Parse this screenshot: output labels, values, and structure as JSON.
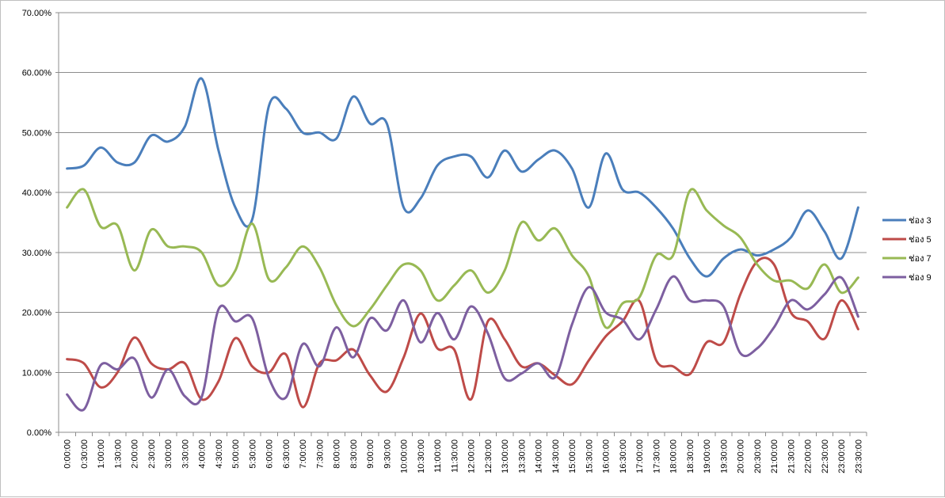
{
  "chart_data": {
    "type": "line",
    "title": "",
    "xlabel": "",
    "ylabel": "",
    "ylim": [
      0,
      70
    ],
    "yticks": [
      "0.00%",
      "10.00%",
      "20.00%",
      "30.00%",
      "40.00%",
      "50.00%",
      "60.00%",
      "70.00%"
    ],
    "grid": true,
    "legend_position": "right",
    "categories": [
      "0:00:00",
      "0:30:00",
      "1:00:00",
      "1:30:00",
      "2:00:00",
      "2:30:00",
      "3:00:00",
      "3:30:00",
      "4:00:00",
      "4:30:00",
      "5:00:00",
      "5:30:00",
      "6:00:00",
      "6:30:00",
      "7:00:00",
      "7:30:00",
      "8:00:00",
      "8:30:00",
      "9:00:00",
      "9:30:00",
      "10:00:00",
      "10:30:00",
      "11:00:00",
      "11:30:00",
      "12:00:00",
      "12:30:00",
      "13:00:00",
      "13:30:00",
      "14:00:00",
      "14:30:00",
      "15:00:00",
      "15:30:00",
      "16:00:00",
      "16:30:00",
      "17:00:00",
      "17:30:00",
      "18:00:00",
      "18:30:00",
      "19:00:00",
      "19:30:00",
      "20:00:00",
      "20:30:00",
      "21:00:00",
      "21:30:00",
      "22:00:00",
      "22:30:00",
      "23:00:00",
      "23:30:00"
    ],
    "series": [
      {
        "name": "ช่อง 3",
        "color": "#4a7ebb",
        "values": [
          44.0,
          44.5,
          47.5,
          45.0,
          45.0,
          49.5,
          48.5,
          51.0,
          59.0,
          47.0,
          37.5,
          35.5,
          54.5,
          54.0,
          50.0,
          50.0,
          49.0,
          56.0,
          51.5,
          51.5,
          37.5,
          39.0,
          44.5,
          46.0,
          46.0,
          42.5,
          47.0,
          43.5,
          45.5,
          47.0,
          44.0,
          37.5,
          46.5,
          40.5,
          40.0,
          37.5,
          34.0,
          29.0,
          26.0,
          29.0,
          30.5,
          29.5,
          30.5,
          32.5,
          37.0,
          33.5,
          29.0,
          37.5
        ]
      },
      {
        "name": "ช่อง 5",
        "color": "#be4b48",
        "values": [
          12.2,
          11.5,
          7.5,
          10.0,
          15.8,
          11.5,
          10.5,
          11.5,
          5.5,
          8.5,
          15.7,
          11.0,
          10.0,
          13.0,
          4.2,
          11.5,
          12.0,
          13.8,
          9.5,
          6.8,
          12.5,
          19.8,
          14.0,
          13.8,
          5.5,
          18.5,
          15.5,
          11.0,
          11.5,
          9.5,
          8.0,
          12.0,
          16.0,
          18.5,
          21.9,
          12.0,
          11.0,
          9.7,
          15.0,
          15.0,
          23.0,
          28.5,
          28.0,
          20.0,
          18.5,
          15.6,
          22.0,
          17.2
        ]
      },
      {
        "name": "ช่อง 7",
        "color": "#98b954",
        "values": [
          37.5,
          40.5,
          34.3,
          34.5,
          27.0,
          33.8,
          31.0,
          31.0,
          30.0,
          24.5,
          27.0,
          34.8,
          25.5,
          27.5,
          31.0,
          27.5,
          21.2,
          17.7,
          20.5,
          24.5,
          28.0,
          27.0,
          22.0,
          24.5,
          27.0,
          23.3,
          27.0,
          35.0,
          32.0,
          34.0,
          29.5,
          26.0,
          17.5,
          21.5,
          22.5,
          29.5,
          29.5,
          40.3,
          37.0,
          34.5,
          32.5,
          28.0,
          25.3,
          25.3,
          24.0,
          28.0,
          23.3,
          25.8
        ]
      },
      {
        "name": "ช่อง 9",
        "color": "#7d5fa0",
        "values": [
          6.3,
          3.8,
          11.2,
          10.5,
          12.3,
          5.8,
          10.5,
          6.0,
          5.9,
          20.5,
          18.5,
          19.0,
          9.0,
          5.8,
          14.7,
          11.0,
          17.5,
          12.5,
          19.0,
          17.0,
          22.0,
          15.0,
          19.9,
          15.5,
          21.0,
          16.5,
          9.0,
          9.8,
          11.5,
          9.2,
          18.0,
          24.2,
          20.0,
          18.8,
          15.5,
          20.5,
          26.0,
          22.0,
          22.0,
          21.0,
          13.2,
          14.0,
          17.5,
          22.0,
          20.5,
          23.0,
          25.8,
          19.3
        ]
      }
    ]
  }
}
